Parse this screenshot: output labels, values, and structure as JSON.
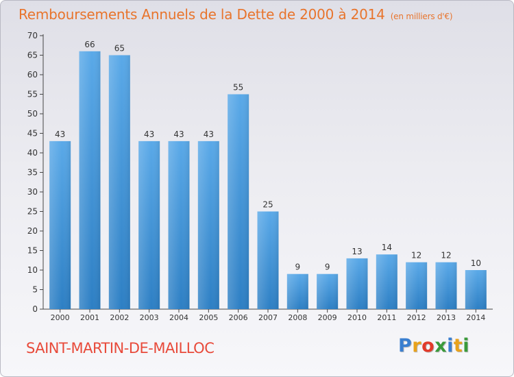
{
  "title": "Remboursements Annuels de la Dette de 2000 à 2014",
  "unit": "(en milliers d'€)",
  "commune": "SAINT-MARTIN-DE-MAILLOC",
  "logo": {
    "letters": [
      "P",
      "r",
      "o",
      "x",
      "i",
      "t",
      "i"
    ],
    "colors": [
      "#3a7fd0",
      "#e8a21c",
      "#e23a2a",
      "#3a9a3a",
      "#3a7fd0",
      "#e8a21c",
      "#3a9a3a"
    ]
  },
  "colors": {
    "bar_top": "#5aa9e8",
    "bar_bottom": "#2d7fc4",
    "title": "#e8742c",
    "commune": "#e84a3a"
  },
  "chart_data": {
    "type": "bar",
    "categories": [
      "2000",
      "2001",
      "2002",
      "2003",
      "2004",
      "2005",
      "2006",
      "2007",
      "2008",
      "2009",
      "2010",
      "2011",
      "2012",
      "2013",
      "2014"
    ],
    "values": [
      43,
      66,
      65,
      43,
      43,
      43,
      55,
      25,
      9,
      9,
      13,
      14,
      12,
      12,
      10
    ],
    "ylim": [
      0,
      70
    ],
    "yticks": [
      0,
      5,
      10,
      15,
      20,
      25,
      30,
      35,
      40,
      45,
      50,
      55,
      60,
      65,
      70
    ],
    "grid": false,
    "xlabel": "",
    "ylabel": ""
  }
}
